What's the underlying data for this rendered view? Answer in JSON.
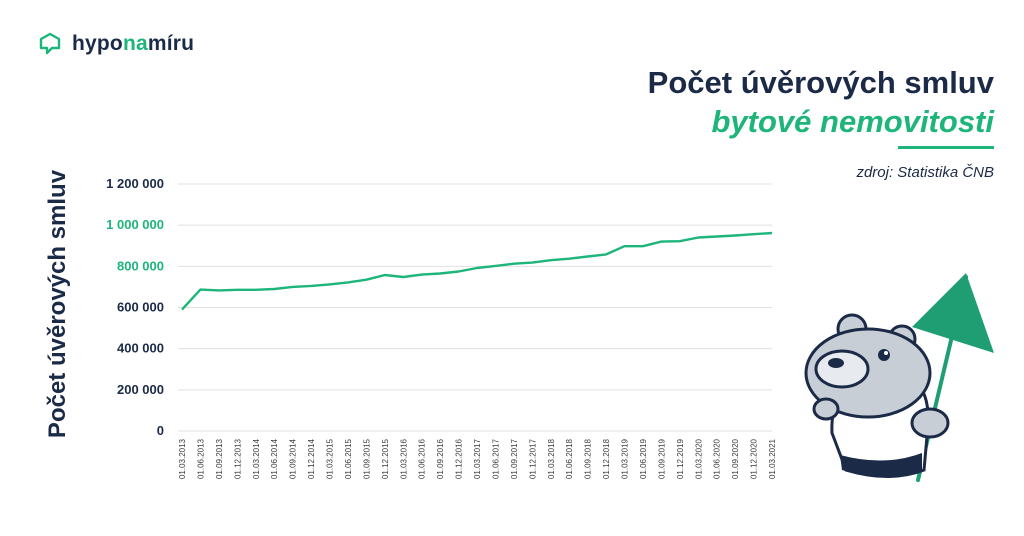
{
  "brand": {
    "prefix": "hypo",
    "accent": "na",
    "suffix": "míru"
  },
  "title": {
    "main": "Počet úvěrových smluv",
    "sub": "bytové nemovitosti"
  },
  "source": "zdroj: Statistika ČNB",
  "colors": {
    "navy": "#1b2a47",
    "green": "#1db57a",
    "grid": "#e1e1e1",
    "flag": "#1e9e72"
  },
  "icons": {
    "logo": "speech-house-icon",
    "mascot": "bear-mascot-with-flag"
  },
  "chart_data": {
    "type": "line",
    "title": "Počet úvěrových smluv bytové nemovitosti",
    "ylabel": "Počet úvěrových smluv",
    "xlabel": "",
    "ylim": [
      0,
      1200000
    ],
    "y_ticks": [
      "0",
      "200 000",
      "400 000",
      "600 000",
      "800 000",
      "1 000 000",
      "1 200 000"
    ],
    "y_tick_values": [
      0,
      200000,
      400000,
      600000,
      800000,
      1000000,
      1200000
    ],
    "highlighted_ticks": [
      "800 000",
      "1 000 000"
    ],
    "grid": true,
    "categories": [
      "01.03.2013",
      "01.06.2013",
      "01.09.2013",
      "01.12.2013",
      "01.03.2014",
      "01.06.2014",
      "01.09.2014",
      "01.12.2014",
      "01.03.2015",
      "01.06.2015",
      "01.09.2015",
      "01.12.2015",
      "01.03.2016",
      "01.06.2016",
      "01.09.2016",
      "01.12.2016",
      "01.03.2017",
      "01.06.2017",
      "01.09.2017",
      "01.12.2017",
      "01.03.2018",
      "01.06.2018",
      "01.09.2018",
      "01.12.2018",
      "01.03.2019",
      "01.06.2019",
      "01.09.2019",
      "01.12.2019",
      "01.03.2020",
      "01.06.2020",
      "01.09.2020",
      "01.12.2020",
      "01.03.2021"
    ],
    "series": [
      {
        "values": [
          590000,
          687000,
          683000,
          686000,
          686000,
          690000,
          700000,
          705000,
          712000,
          722000,
          735000,
          758000,
          748000,
          760000,
          765000,
          775000,
          792000,
          802000,
          813000,
          818000,
          830000,
          837000,
          848000,
          858000,
          898000,
          898000,
          920000,
          922000,
          940000,
          945000,
          950000,
          956000,
          962000
        ]
      }
    ]
  }
}
